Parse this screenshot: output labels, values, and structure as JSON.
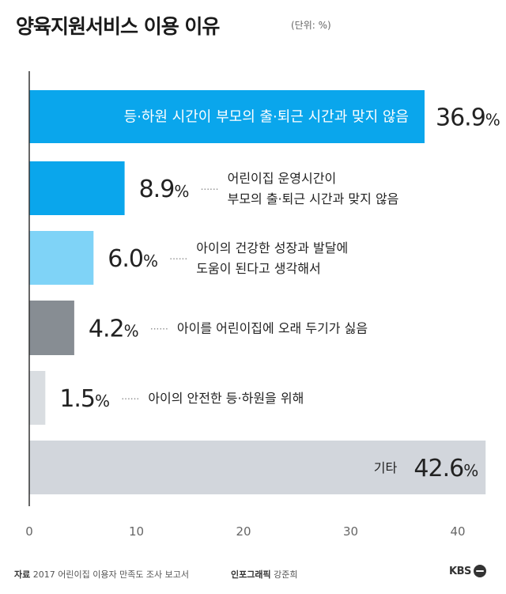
{
  "header": {
    "title": "양육지원서비스 이용 이유",
    "unit": "(단위: %)"
  },
  "footer": {
    "source_label": "자료",
    "source_text": "2017 어린이집 이용자 만족도 조사 보고서",
    "credit_label": "인포그래픽",
    "credit_text": "강준희",
    "logo": "KBS"
  },
  "chart_data": {
    "type": "bar",
    "orientation": "horizontal",
    "title": "양육지원서비스 이용 이유",
    "unit": "(단위: %)",
    "categories": [
      "등·하원 시간이 부모의 출·퇴근 시간과 맞지 않음",
      "어린이집 운영시간이\n부모의 출·퇴근 시간과 맞지 않음",
      "아이의 건강한 성장과 발달에\n도움이 된다고 생각해서",
      "아이를 어린이집에 오래 두기가 싫음",
      "아이의 안전한 등·하원을 위해",
      "기타"
    ],
    "values": [
      36.9,
      8.9,
      6.0,
      4.2,
      1.5,
      42.6
    ],
    "value_labels": [
      "36.9",
      "8.9",
      "6.0",
      "4.2",
      "1.5",
      "42.6"
    ],
    "value_suffix": "%",
    "colors": [
      "#0aa6ec",
      "#0aa6ec",
      "#7fd3f7",
      "#878d93",
      "#d9dde1",
      "#d2d6dc"
    ],
    "xlim": [
      0,
      42.6
    ],
    "xticks": [
      0,
      10,
      20,
      30,
      40
    ],
    "grid": false
  }
}
